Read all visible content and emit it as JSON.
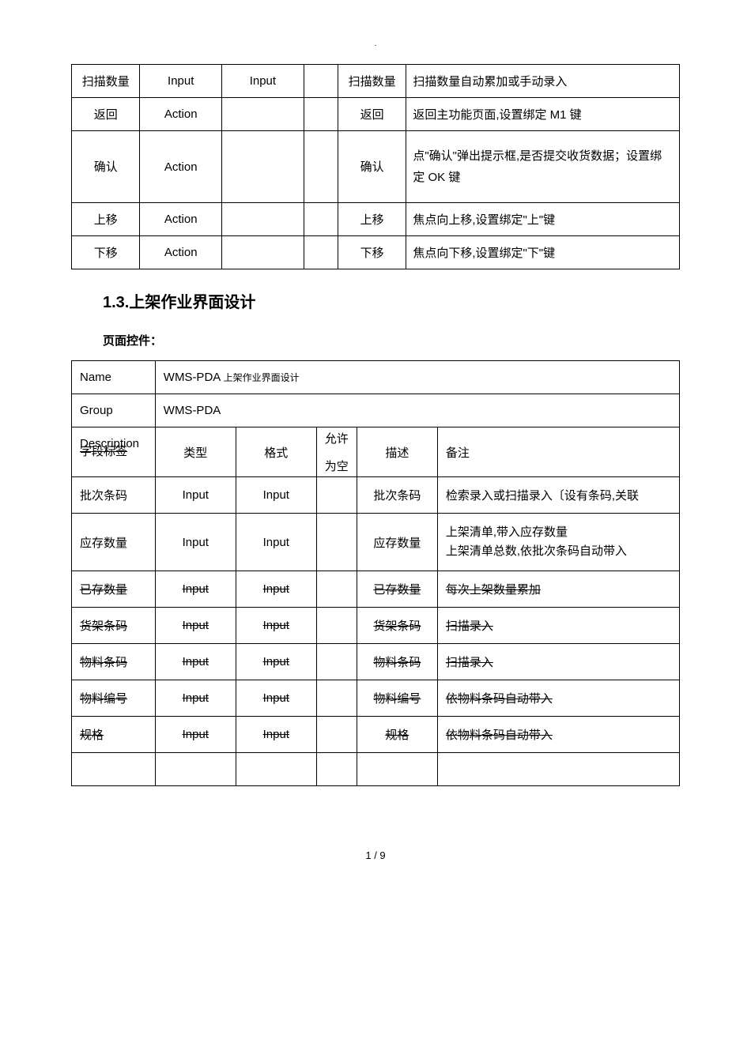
{
  "dot": ".",
  "table1": {
    "rows": [
      {
        "c0": "扫描数量",
        "c1": "Input",
        "c2": "Input",
        "c3": "",
        "c4": "扫描数量",
        "c5": "扫描数量自动累加或手动录入",
        "tall": false
      },
      {
        "c0": "返回",
        "c1": "Action",
        "c2": "",
        "c3": "",
        "c4": "返回",
        "c5": "返回主功能页面,设置绑定 M1 键",
        "tall": false
      },
      {
        "c0": "确认",
        "c1": "Action",
        "c2": "",
        "c3": "",
        "c4": "确认",
        "c5": "点\"确认\"弹出提示框,是否提交收货数据；设置绑定 OK 键",
        "tall": true
      },
      {
        "c0": "上移",
        "c1": "Action",
        "c2": "",
        "c3": "",
        "c4": "上移",
        "c5": "焦点向上移,设置绑定\"上\"键",
        "tall": false
      },
      {
        "c0": "下移",
        "c1": "Action",
        "c2": "",
        "c3": "",
        "c4": "下移",
        "c5": "焦点向下移,设置绑定\"下\"键",
        "tall": false
      }
    ]
  },
  "section": {
    "number": "1.3.",
    "title": "上架作业界面设计",
    "sub_label": "页面控件：",
    "name_label": "Name",
    "name_value_prefix": "WMS-PDA",
    "name_value_suffix": "上架作业界面设计",
    "group_label": "Group",
    "group_value": "WMS-PDA",
    "desc_overlap_top": "Description",
    "desc_overlap_bottom": "字段标签",
    "hdr_type": "类型",
    "hdr_fmt": "格式",
    "hdr_null_top": "允许",
    "hdr_null_bottom": "为空",
    "hdr_desc": "描述",
    "hdr_note": "备注",
    "rows": [
      {
        "label": "批次条码",
        "type": "Input",
        "fmt": "Input",
        "desc": "批次条码",
        "note": "检索录入或扫描录入〔设有条码,关联",
        "strike": false
      },
      {
        "label": "应存数量",
        "type": "Input",
        "fmt": "Input",
        "desc": "应存数量",
        "note": "上架清单,带入应存数量",
        "note2": "上架清单总数,依批次条码自动带入",
        "strike": false
      },
      {
        "label": "已存数量",
        "type": "Input",
        "fmt": "Input",
        "desc": "已存数量",
        "note": "每次上架数量累加",
        "strike": true
      },
      {
        "label": "货架条码",
        "type": "Input",
        "fmt": "Input",
        "desc": "货架条码",
        "note": "扫描录入",
        "strike": true
      },
      {
        "label": "物料条码",
        "type": "Input",
        "fmt": "Input",
        "desc": "物料条码",
        "note": "扫描录入",
        "strike": true
      },
      {
        "label": "物料编号",
        "type": "Input",
        "fmt": "Input",
        "desc": "物料编号",
        "note": "依物料条码自动带入",
        "strike": true
      },
      {
        "label": "规格",
        "type": "Input",
        "fmt": "Input",
        "desc": "规格",
        "note": "依物料条码自动带入",
        "strike": true
      }
    ]
  },
  "footer": {
    "page": "1",
    "sep": " / ",
    "total": "9"
  }
}
